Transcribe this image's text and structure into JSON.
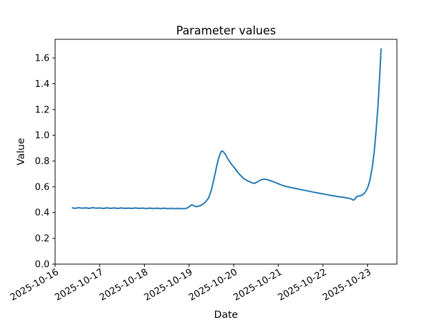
{
  "chart_data": {
    "type": "line",
    "title": "Parameter values",
    "xlabel": "Date",
    "ylabel": "Value",
    "grid": false,
    "legend": "none",
    "x_axis": {
      "tick_labels": [
        "2025-10-16",
        "2025-10-17",
        "2025-10-18",
        "2025-10-19",
        "2025-10-20",
        "2025-10-21",
        "2025-10-22",
        "2025-10-23"
      ],
      "tick_positions_days": [
        0,
        1,
        2,
        3,
        4,
        5,
        6,
        7
      ],
      "range_days": [
        0,
        7.655
      ],
      "tick_rotation_deg": 30
    },
    "y_axis": {
      "ticks": [
        0.0,
        0.2,
        0.4,
        0.6,
        0.8,
        1.0,
        1.2,
        1.4,
        1.6
      ],
      "range": [
        0,
        1.745
      ],
      "tick_format_decimals": 1
    },
    "series": [
      {
        "name": "Value",
        "color": "#1f77b4",
        "points": [
          [
            0.386,
            0.437
          ],
          [
            0.45,
            0.433
          ],
          [
            0.52,
            0.438
          ],
          [
            0.6,
            0.434
          ],
          [
            0.68,
            0.437
          ],
          [
            0.76,
            0.433
          ],
          [
            0.84,
            0.438
          ],
          [
            0.92,
            0.434
          ],
          [
            1.0,
            0.436
          ],
          [
            1.08,
            0.432
          ],
          [
            1.16,
            0.437
          ],
          [
            1.24,
            0.433
          ],
          [
            1.32,
            0.436
          ],
          [
            1.4,
            0.432
          ],
          [
            1.48,
            0.436
          ],
          [
            1.56,
            0.433
          ],
          [
            1.64,
            0.435
          ],
          [
            1.72,
            0.432
          ],
          [
            1.8,
            0.436
          ],
          [
            1.88,
            0.432
          ],
          [
            1.96,
            0.435
          ],
          [
            2.04,
            0.431
          ],
          [
            2.12,
            0.435
          ],
          [
            2.2,
            0.431
          ],
          [
            2.28,
            0.434
          ],
          [
            2.36,
            0.431
          ],
          [
            2.44,
            0.434
          ],
          [
            2.52,
            0.43
          ],
          [
            2.6,
            0.433
          ],
          [
            2.68,
            0.43
          ],
          [
            2.76,
            0.432
          ],
          [
            2.84,
            0.43
          ],
          [
            2.92,
            0.431
          ],
          [
            2.97,
            0.438
          ],
          [
            3.02,
            0.45
          ],
          [
            3.06,
            0.461
          ],
          [
            3.1,
            0.455
          ],
          [
            3.15,
            0.446
          ],
          [
            3.2,
            0.448
          ],
          [
            3.26,
            0.455
          ],
          [
            3.32,
            0.468
          ],
          [
            3.38,
            0.487
          ],
          [
            3.44,
            0.515
          ],
          [
            3.5,
            0.575
          ],
          [
            3.56,
            0.665
          ],
          [
            3.62,
            0.762
          ],
          [
            3.66,
            0.82
          ],
          [
            3.7,
            0.86
          ],
          [
            3.73,
            0.878
          ],
          [
            3.77,
            0.872
          ],
          [
            3.82,
            0.848
          ],
          [
            3.88,
            0.81
          ],
          [
            3.95,
            0.775
          ],
          [
            4.03,
            0.742
          ],
          [
            4.12,
            0.7
          ],
          [
            4.22,
            0.665
          ],
          [
            4.32,
            0.645
          ],
          [
            4.42,
            0.63
          ],
          [
            4.47,
            0.627
          ],
          [
            4.53,
            0.638
          ],
          [
            4.6,
            0.652
          ],
          [
            4.66,
            0.659
          ],
          [
            4.72,
            0.658
          ],
          [
            4.8,
            0.65
          ],
          [
            4.9,
            0.638
          ],
          [
            5.0,
            0.624
          ],
          [
            5.1,
            0.61
          ],
          [
            5.22,
            0.599
          ],
          [
            5.36,
            0.589
          ],
          [
            5.5,
            0.579
          ],
          [
            5.64,
            0.569
          ],
          [
            5.78,
            0.559
          ],
          [
            5.92,
            0.55
          ],
          [
            6.06,
            0.541
          ],
          [
            6.2,
            0.532
          ],
          [
            6.34,
            0.524
          ],
          [
            6.48,
            0.517
          ],
          [
            6.58,
            0.511
          ],
          [
            6.64,
            0.505
          ],
          [
            6.68,
            0.496
          ],
          [
            6.72,
            0.508
          ],
          [
            6.76,
            0.526
          ],
          [
            6.82,
            0.529
          ],
          [
            6.88,
            0.537
          ],
          [
            6.94,
            0.555
          ],
          [
            7.0,
            0.592
          ],
          [
            7.05,
            0.65
          ],
          [
            7.1,
            0.745
          ],
          [
            7.15,
            0.88
          ],
          [
            7.19,
            1.04
          ],
          [
            7.23,
            1.22
          ],
          [
            7.26,
            1.4
          ],
          [
            7.28,
            1.53
          ],
          [
            7.3,
            1.67
          ]
        ]
      }
    ]
  }
}
